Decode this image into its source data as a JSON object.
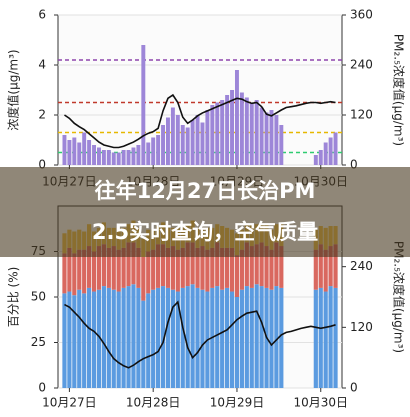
{
  "banner": {
    "lines": [
      "往年12月27日长治PM",
      "2.5实时查询，空气质量"
    ]
  },
  "chart_data": [
    {
      "type": "bar_line",
      "ylabel": "浓度值(μg/m³)",
      "y2label": "PM₂.₅浓度值(μg/m³)",
      "xlim": [
        0,
        56
      ],
      "xticks": [
        {
          "value": 1.5,
          "label": "10月27日"
        },
        {
          "value": 18.5,
          "label": "10月28日"
        },
        {
          "value": 35.5,
          "label": "10月29日"
        },
        {
          "value": 52.5,
          "label": "10月30日"
        }
      ],
      "ylim": [
        0,
        6
      ],
      "yticks": [
        0,
        2,
        4,
        6
      ],
      "y2lim": [
        0,
        360
      ],
      "y2ticks": [
        0,
        120,
        240,
        360
      ],
      "reference_lines": [
        {
          "value": 4.2,
          "color": "#8e44ad"
        },
        {
          "value": 2.5,
          "color": "#c0392b"
        },
        {
          "value": 1.3,
          "color": "#e6b800"
        },
        {
          "value": 0.5,
          "color": "#2ecc71"
        }
      ],
      "series": [
        {
          "color": "#9d86d8",
          "values": [
            1.2,
            1.0,
            1.1,
            0.9,
            1.3,
            1.0,
            0.8,
            0.7,
            0.6,
            0.6,
            0.5,
            0.5,
            0.6,
            0.6,
            0.7,
            0.8,
            4.8,
            0.9,
            1.1,
            1.2,
            1.6,
            1.9,
            2.3,
            2.0,
            1.6,
            1.5,
            1.8,
            2.0,
            1.7,
            2.2,
            2.4,
            2.5,
            2.6,
            2.8,
            3.0,
            3.8,
            2.9,
            2.7,
            2.5,
            2.6,
            2.3,
            2.1,
            2.2,
            2.0,
            1.6,
            null,
            null,
            null,
            null,
            null,
            null,
            0.4,
            0.6,
            0.9,
            1.1,
            1.3
          ]
        },
        {
          "color": "#111111",
          "axis": "y2",
          "values": [
            120,
            112,
            100,
            92,
            85,
            75,
            65,
            55,
            48,
            45,
            42,
            42,
            45,
            50,
            55,
            62,
            70,
            76,
            80,
            88,
            130,
            160,
            168,
            150,
            115,
            100,
            108,
            118,
            125,
            130,
            135,
            140,
            145,
            150,
            155,
            160,
            158,
            152,
            148,
            150,
            140,
            122,
            118,
            125,
            132,
            138,
            140,
            142,
            145,
            148,
            150,
            150,
            148,
            150,
            152,
            150
          ]
        }
      ]
    },
    {
      "type": "stacked_bar_line",
      "ylabel": "百分比 (%)",
      "y2label": "PM₂.₅浓度值(μg/m³)",
      "xlim": [
        0,
        56
      ],
      "xticks": [
        {
          "value": 1.5,
          "label": "10月27日"
        },
        {
          "value": 18.5,
          "label": "10月28日"
        },
        {
          "value": 35.5,
          "label": "10月29日"
        },
        {
          "value": 52.5,
          "label": "10月30日"
        }
      ],
      "ylim": [
        0,
        100
      ],
      "yticks": [
        0,
        25,
        50,
        75
      ],
      "y2lim": [
        0,
        360
      ],
      "y2ticks": [
        0,
        120,
        240
      ],
      "series": [
        {
          "color": "#5b9be0",
          "values": [
            52,
            53,
            51,
            54,
            52,
            55,
            53,
            54,
            56,
            55,
            54,
            53,
            55,
            56,
            57,
            55,
            48,
            52,
            54,
            55,
            56,
            55,
            54,
            53,
            55,
            56,
            57,
            55,
            54,
            53,
            55,
            56,
            54,
            55,
            53,
            50,
            54,
            56,
            55,
            57,
            56,
            55,
            54,
            56,
            55,
            null,
            null,
            null,
            null,
            null,
            null,
            54,
            55,
            53,
            56,
            55
          ]
        },
        {
          "color": "#d9685f",
          "values": [
            22,
            24,
            23,
            22,
            24,
            23,
            22,
            24,
            23,
            22,
            24,
            23,
            22,
            24,
            23,
            22,
            24,
            23,
            22,
            24,
            23,
            22,
            24,
            23,
            22,
            24,
            23,
            22,
            24,
            23,
            22,
            24,
            23,
            22,
            24,
            23,
            22,
            24,
            23,
            22,
            24,
            23,
            22,
            24,
            23,
            null,
            null,
            null,
            null,
            null,
            null,
            22,
            24,
            23,
            22,
            24
          ]
        },
        {
          "color": "#f0c04a",
          "values": [
            11,
            10,
            12,
            11,
            10,
            12,
            11,
            10,
            12,
            11,
            10,
            12,
            11,
            10,
            12,
            11,
            10,
            12,
            11,
            10,
            12,
            11,
            10,
            12,
            11,
            10,
            12,
            11,
            10,
            12,
            11,
            10,
            12,
            11,
            10,
            12,
            11,
            10,
            12,
            11,
            10,
            12,
            11,
            10,
            12,
            null,
            null,
            null,
            null,
            null,
            null,
            11,
            10,
            12,
            11,
            10
          ]
        },
        {
          "color": "#111111",
          "axis": "y2",
          "values": [
            165,
            160,
            150,
            140,
            128,
            118,
            112,
            102,
            88,
            72,
            58,
            50,
            44,
            40,
            45,
            52,
            58,
            62,
            66,
            72,
            90,
            130,
            160,
            170,
            120,
            80,
            60,
            70,
            85,
            95,
            100,
            105,
            110,
            115,
            125,
            135,
            142,
            148,
            150,
            152,
            130,
            100,
            85,
            95,
            105,
            110,
            112,
            115,
            118,
            120,
            122,
            120,
            118,
            120,
            122,
            125
          ]
        }
      ]
    }
  ]
}
